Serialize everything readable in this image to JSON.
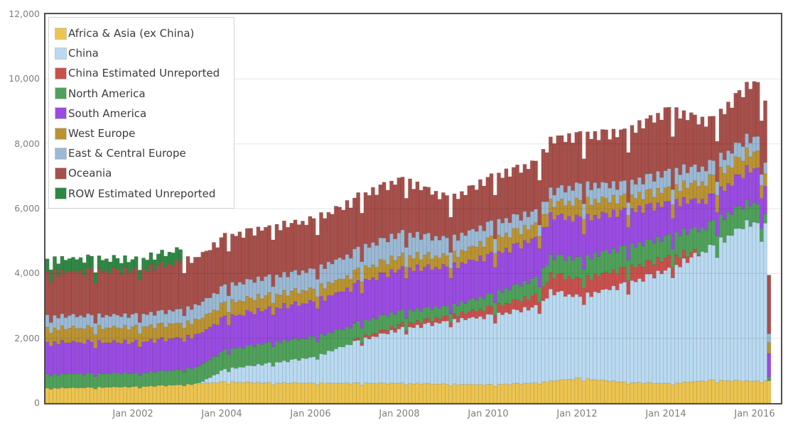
{
  "chart_data": {
    "type": "bar",
    "stacked": true,
    "title": "",
    "xlabel": "",
    "ylabel": "",
    "x_axis": {
      "interval": "monthly",
      "start": "Jan 2000",
      "end": "Apr 2016",
      "months_total": 196,
      "tick_labels": [
        "Jan 2002",
        "Jan 2004",
        "Jan 2006",
        "Jan 2008",
        "Jan 2010",
        "Jan 2012",
        "Jan 2014",
        "Jan 2016"
      ],
      "tick_month_indices": [
        24,
        48,
        72,
        96,
        120,
        144,
        168,
        192
      ]
    },
    "y_axis": {
      "min": 0,
      "max": 12000,
      "tick_step": 2000,
      "tick_labels": [
        "0",
        "2,000",
        "4,000",
        "6,000",
        "8,000",
        "10,000",
        "12,000"
      ],
      "grid": true
    },
    "legend_position": "top-left-inside",
    "value_note": "Monthly stacked volumes estimated from pixels; anchors are [month_index_from_Jan2000, value]; monthly bars interpolate anchors and scale by days-in-month (visible sawtooth, deep Feb notches). China reporting starts mid-2003; ROW Estimated Unreported ends early 2003; China Estimated Unreported spans ~2007-2014; final partial month lacks China data (total ~4100).",
    "series": [
      {
        "name": "Africa & Asia (ex China)",
        "color": "#ECC44F",
        "anchors": [
          [
            0,
            455
          ],
          [
            24,
            500
          ],
          [
            36,
            560
          ],
          [
            48,
            650
          ],
          [
            60,
            620
          ],
          [
            84,
            610
          ],
          [
            96,
            610
          ],
          [
            108,
            580
          ],
          [
            120,
            565
          ],
          [
            132,
            620
          ],
          [
            138,
            700
          ],
          [
            144,
            760
          ],
          [
            156,
            640
          ],
          [
            168,
            600
          ],
          [
            180,
            700
          ],
          [
            192,
            675
          ],
          [
            195,
            700
          ]
        ]
      },
      {
        "name": "China",
        "color": "#B9DAF1",
        "anchors": [
          [
            0,
            0
          ],
          [
            40,
            0
          ],
          [
            42,
            60
          ],
          [
            48,
            390
          ],
          [
            60,
            600
          ],
          [
            72,
            795
          ],
          [
            84,
            1300
          ],
          [
            96,
            1680
          ],
          [
            109,
            1950
          ],
          [
            120,
            2115
          ],
          [
            133,
            2350
          ],
          [
            136,
            2750
          ],
          [
            144,
            2500
          ],
          [
            156,
            3000
          ],
          [
            168,
            3500
          ],
          [
            180,
            4120
          ],
          [
            190,
            4900
          ],
          [
            192,
            4725
          ],
          [
            194,
            4800
          ],
          [
            195,
            0
          ]
        ]
      },
      {
        "name": "China Estimated Unreported",
        "color": "#C9504C",
        "anchors": [
          [
            0,
            0
          ],
          [
            82,
            0
          ],
          [
            84,
            80
          ],
          [
            96,
            130
          ],
          [
            108,
            150
          ],
          [
            120,
            260
          ],
          [
            132,
            350
          ],
          [
            136,
            520
          ],
          [
            144,
            545
          ],
          [
            156,
            480
          ],
          [
            168,
            370
          ],
          [
            172,
            250
          ],
          [
            177,
            0
          ],
          [
            195,
            0
          ]
        ]
      },
      {
        "name": "North America",
        "color": "#4FA15A",
        "anchors": [
          [
            0,
            435
          ],
          [
            24,
            420
          ],
          [
            36,
            470
          ],
          [
            48,
            590
          ],
          [
            60,
            640
          ],
          [
            72,
            615
          ],
          [
            84,
            500
          ],
          [
            96,
            415
          ],
          [
            109,
            300
          ],
          [
            120,
            395
          ],
          [
            132,
            520
          ],
          [
            144,
            635
          ],
          [
            156,
            660
          ],
          [
            168,
            650
          ],
          [
            180,
            740
          ],
          [
            192,
            590
          ],
          [
            195,
            130
          ]
        ]
      },
      {
        "name": "South America",
        "color": "#9A4BE2",
        "anchors": [
          [
            0,
            980
          ],
          [
            24,
            950
          ],
          [
            48,
            1000
          ],
          [
            72,
            1090
          ],
          [
            84,
            1200
          ],
          [
            96,
            1300
          ],
          [
            109,
            1200
          ],
          [
            120,
            1200
          ],
          [
            136,
            1240
          ],
          [
            144,
            1220
          ],
          [
            156,
            1100
          ],
          [
            168,
            1025
          ],
          [
            180,
            790
          ],
          [
            192,
            1090
          ],
          [
            195,
            740
          ]
        ]
      },
      {
        "name": "West Europe",
        "color": "#BB9332",
        "anchors": [
          [
            0,
            435
          ],
          [
            24,
            460
          ],
          [
            48,
            440
          ],
          [
            72,
            390
          ],
          [
            96,
            395
          ],
          [
            109,
            330
          ],
          [
            120,
            500
          ],
          [
            132,
            420
          ],
          [
            136,
            395
          ],
          [
            144,
            520
          ],
          [
            156,
            420
          ],
          [
            168,
            435
          ],
          [
            180,
            585
          ],
          [
            192,
            500
          ],
          [
            195,
            330
          ]
        ]
      },
      {
        "name": "East & Central Europe",
        "color": "#9BB9D4",
        "anchors": [
          [
            0,
            370
          ],
          [
            24,
            370
          ],
          [
            36,
            420
          ],
          [
            48,
            530
          ],
          [
            60,
            560
          ],
          [
            72,
            590
          ],
          [
            84,
            650
          ],
          [
            96,
            695
          ],
          [
            109,
            520
          ],
          [
            120,
            480
          ],
          [
            132,
            400
          ],
          [
            136,
            365
          ],
          [
            144,
            505
          ],
          [
            156,
            420
          ],
          [
            168,
            525
          ],
          [
            180,
            440
          ],
          [
            192,
            440
          ],
          [
            195,
            270
          ]
        ]
      },
      {
        "name": "Oceania",
        "color": "#A74F4A",
        "anchors": [
          [
            0,
            1350
          ],
          [
            24,
            1380
          ],
          [
            36,
            1450
          ],
          [
            48,
            1500
          ],
          [
            60,
            1520
          ],
          [
            72,
            1525
          ],
          [
            84,
            1600
          ],
          [
            96,
            1660
          ],
          [
            109,
            1220
          ],
          [
            120,
            1415
          ],
          [
            132,
            1500
          ],
          [
            136,
            1575
          ],
          [
            144,
            1525
          ],
          [
            156,
            1600
          ],
          [
            168,
            1875
          ],
          [
            180,
            1310
          ],
          [
            192,
            1700
          ],
          [
            195,
            1900
          ]
        ]
      },
      {
        "name": "ROW Estimated Unreported",
        "color": "#2F8743",
        "anchors": [
          [
            0,
            395
          ],
          [
            12,
            390
          ],
          [
            24,
            325
          ],
          [
            30,
            350
          ],
          [
            36,
            390
          ],
          [
            37,
            0
          ],
          [
            195,
            0
          ]
        ]
      }
    ]
  },
  "layout_hints": {
    "plot_border_color": "#4f4f4f",
    "gridline_color_over_bars": "rgba(0,0,0,0.10)",
    "bar_stroke": "rgba(0,0,0,0.14)",
    "axis_text_color": "#7f7f7f",
    "legend_text_color": "#3b3b3b",
    "days_in_month": [
      31,
      28,
      31,
      30,
      31,
      30,
      31,
      31,
      30,
      31,
      30,
      31
    ]
  }
}
